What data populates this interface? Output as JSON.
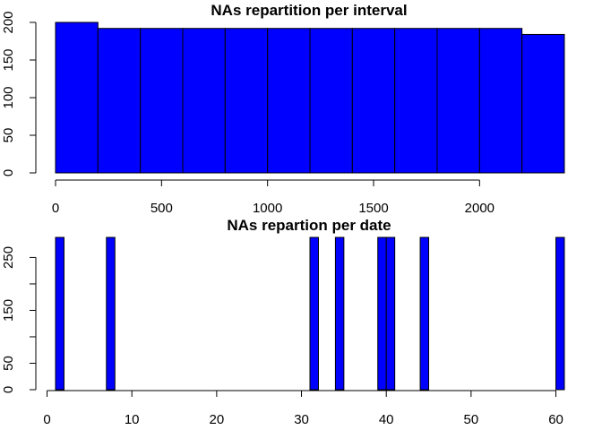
{
  "chart_data": [
    {
      "type": "bar",
      "title": "NAs repartition per interval",
      "xlabel": "",
      "ylabel": "",
      "bin_width": 200,
      "bins": [
        {
          "start": 0,
          "end": 200,
          "value": 200
        },
        {
          "start": 200,
          "end": 400,
          "value": 192
        },
        {
          "start": 400,
          "end": 600,
          "value": 192
        },
        {
          "start": 600,
          "end": 800,
          "value": 192
        },
        {
          "start": 800,
          "end": 1000,
          "value": 192
        },
        {
          "start": 1000,
          "end": 1200,
          "value": 192
        },
        {
          "start": 1200,
          "end": 1400,
          "value": 192
        },
        {
          "start": 1400,
          "end": 1600,
          "value": 192
        },
        {
          "start": 1600,
          "end": 1800,
          "value": 192
        },
        {
          "start": 1800,
          "end": 2000,
          "value": 192
        },
        {
          "start": 2000,
          "end": 2200,
          "value": 192
        },
        {
          "start": 2200,
          "end": 2400,
          "value": 184
        }
      ],
      "xlim": [
        0,
        2400
      ],
      "ylim": [
        0,
        200
      ],
      "x_ticks": [
        0,
        500,
        1000,
        1500,
        2000
      ],
      "y_ticks": [
        0,
        50,
        100,
        150,
        200
      ],
      "grid": false,
      "bar_color": "#0000ff"
    },
    {
      "type": "bar",
      "title": "NAs repartion per date",
      "xlabel": "",
      "ylabel": "",
      "bin_width": 1,
      "bins": [
        {
          "start": 1,
          "end": 2,
          "value": 288
        },
        {
          "start": 7,
          "end": 8,
          "value": 288
        },
        {
          "start": 31,
          "end": 32,
          "value": 288
        },
        {
          "start": 34,
          "end": 35,
          "value": 288
        },
        {
          "start": 39,
          "end": 40,
          "value": 288
        },
        {
          "start": 40,
          "end": 41,
          "value": 288
        },
        {
          "start": 44,
          "end": 45,
          "value": 288
        },
        {
          "start": 60,
          "end": 61,
          "value": 288
        }
      ],
      "xlim": [
        1,
        61
      ],
      "ylim": [
        0,
        288
      ],
      "x_ticks": [
        0,
        10,
        20,
        30,
        40,
        50,
        60
      ],
      "y_ticks": [
        0,
        50,
        100,
        150,
        200,
        250
      ],
      "y_tick_labels": [
        "0",
        "50",
        "",
        "150",
        "",
        "250"
      ],
      "grid": false,
      "bar_color": "#0000ff"
    }
  ]
}
